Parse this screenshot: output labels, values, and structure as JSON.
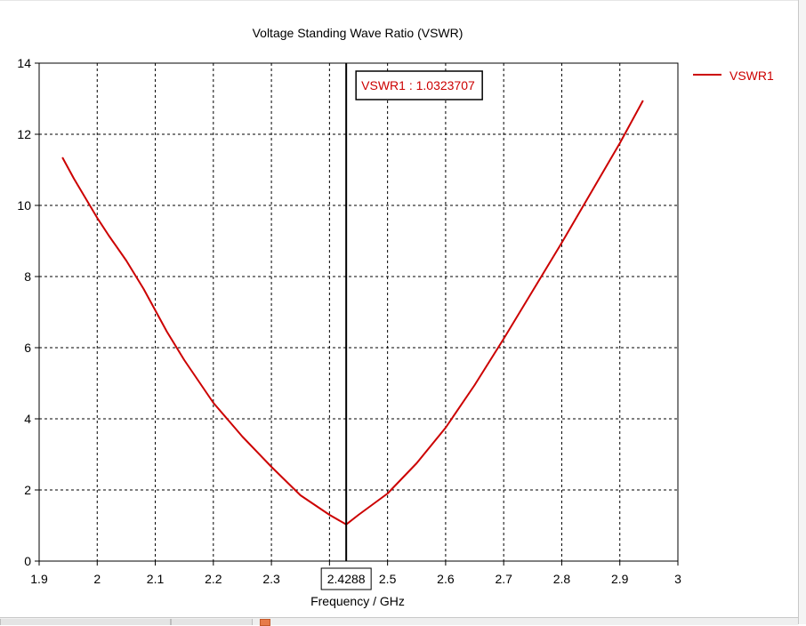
{
  "chart_data": {
    "type": "line",
    "title": "Voltage Standing Wave Ratio (VSWR)",
    "xlabel": "Frequency / GHz",
    "ylabel": "",
    "xlim": [
      1.9,
      3.0
    ],
    "ylim": [
      0,
      14
    ],
    "x_ticks": [
      "1.9",
      "2",
      "2.1",
      "2.2",
      "2.3",
      "2.4",
      "2.5",
      "2.6",
      "2.7",
      "2.8",
      "2.9",
      "3"
    ],
    "y_ticks": [
      "0",
      "2",
      "4",
      "6",
      "8",
      "10",
      "12",
      "14"
    ],
    "grid": true,
    "legend": "right",
    "series": [
      {
        "name": "VSWR1",
        "color": "#cc0000",
        "x": [
          1.94,
          1.96,
          1.98,
          2.0,
          2.02,
          2.05,
          2.08,
          2.1,
          2.12,
          2.15,
          2.2,
          2.25,
          2.3,
          2.35,
          2.4,
          2.4288,
          2.45,
          2.5,
          2.55,
          2.6,
          2.65,
          2.7,
          2.75,
          2.8,
          2.85,
          2.9,
          2.94
        ],
        "y": [
          11.35,
          10.75,
          10.2,
          9.65,
          9.15,
          8.45,
          7.65,
          7.05,
          6.45,
          5.65,
          4.45,
          3.5,
          2.65,
          1.85,
          1.3,
          1.03,
          1.3,
          1.9,
          2.75,
          3.75,
          4.95,
          6.25,
          7.6,
          8.95,
          10.35,
          11.75,
          12.95
        ]
      }
    ],
    "marker": {
      "x": 2.4288,
      "x_label": "2.4288",
      "label": "VSWR1 : 1.0323707"
    }
  }
}
